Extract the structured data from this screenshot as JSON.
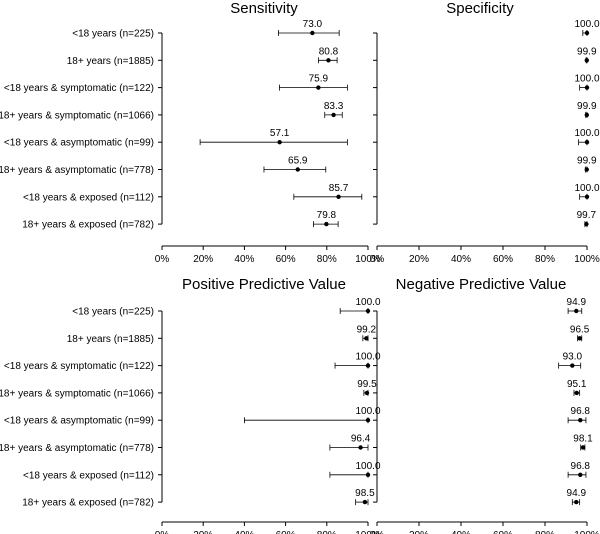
{
  "chart_data": [
    {
      "type": "forest",
      "title": "Sensitivity",
      "xlim": [
        0,
        100
      ],
      "x_unit": "%",
      "rows": [
        "<18 years (n=225)",
        "18+ years (n=1885)",
        "<18 years & symptomatic (n=122)",
        "18+ years & symptomatic (n=1066)",
        "<18 years & asymptomatic (n=99)",
        "18+ years & asymptomatic (n=778)",
        "<18 years & exposed (n=112)",
        "18+ years & exposed (n=782)"
      ],
      "estimates": [
        73.0,
        80.8,
        75.9,
        83.3,
        57.1,
        65.9,
        85.7,
        79.8
      ],
      "ci_low": [
        56.5,
        76.0,
        57.0,
        79.0,
        18.5,
        49.5,
        64.0,
        73.5
      ],
      "ci_high": [
        86.0,
        85.0,
        90.0,
        87.5,
        90.0,
        79.5,
        97.0,
        85.5
      ],
      "labels": [
        "73.0",
        "80.8",
        "75.9",
        "83.3",
        "57.1",
        "65.9",
        "85.7",
        "79.8"
      ]
    },
    {
      "type": "forest",
      "title": "Specificity",
      "xlim": [
        0,
        100
      ],
      "x_unit": "%",
      "rows": [
        "<18 years (n=225)",
        "18+ years (n=1885)",
        "<18 years & symptomatic (n=122)",
        "18+ years & symptomatic (n=1066)",
        "<18 years & asymptomatic (n=99)",
        "18+ years & asymptomatic (n=778)",
        "<18 years & exposed (n=112)",
        "18+ years & exposed (n=782)"
      ],
      "estimates": [
        100.0,
        99.9,
        100.0,
        99.9,
        100.0,
        99.9,
        100.0,
        99.7
      ],
      "ci_low": [
        98.0,
        99.6,
        96.5,
        99.4,
        96.0,
        99.2,
        96.5,
        99.0
      ],
      "ci_high": [
        100,
        100,
        100,
        100,
        100,
        100,
        100,
        100
      ],
      "labels": [
        "100.0",
        "99.9",
        "100.0",
        "99.9",
        "100.0",
        "99.9",
        "100.0",
        "99.7"
      ]
    },
    {
      "type": "forest",
      "title": "Positive Predictive Value",
      "xlim": [
        0,
        100
      ],
      "x_unit": "%",
      "rows": [
        "<18 years (n=225)",
        "18+ years (n=1885)",
        "<18 years & symptomatic (n=122)",
        "18+ years & symptomatic (n=1066)",
        "<18 years & asymptomatic (n=99)",
        "18+ years & asymptomatic (n=778)",
        "<18 years & exposed (n=112)",
        "18+ years & exposed (n=782)"
      ],
      "estimates": [
        100.0,
        99.2,
        100.0,
        99.5,
        100.0,
        96.4,
        100.0,
        98.5
      ],
      "ci_low": [
        86.5,
        97.5,
        84.0,
        98.0,
        40.0,
        81.5,
        81.5,
        94.0
      ],
      "ci_high": [
        100,
        100,
        100,
        100,
        100,
        100,
        100,
        100
      ],
      "labels": [
        "100.0",
        "99.2",
        "100.0",
        "99.5",
        "100.0",
        "96.4",
        "100.0",
        "98.5"
      ]
    },
    {
      "type": "forest",
      "title": "Negative Predictive Value",
      "xlim": [
        0,
        100
      ],
      "x_unit": "%",
      "rows": [
        "<18 years (n=225)",
        "18+ years (n=1885)",
        "<18 years & symptomatic (n=122)",
        "18+ years & symptomatic (n=1066)",
        "<18 years & asymptomatic (n=99)",
        "18+ years & asymptomatic (n=778)",
        "<18 years & exposed (n=112)",
        "18+ years & exposed (n=782)"
      ],
      "estimates": [
        94.9,
        96.5,
        93.0,
        95.1,
        96.8,
        98.1,
        96.8,
        94.9
      ],
      "ci_low": [
        91.0,
        95.5,
        86.5,
        93.8,
        91.0,
        97.0,
        91.0,
        93.0
      ],
      "ci_high": [
        97.5,
        97.5,
        97.0,
        96.5,
        99.5,
        99.0,
        99.5,
        96.5
      ],
      "labels": [
        "94.9",
        "96.5",
        "93.0",
        "95.1",
        "96.8",
        "98.1",
        "96.8",
        "94.9"
      ]
    }
  ],
  "x_ticks": [
    "0%",
    "20%",
    "40%",
    "60%",
    "80%",
    "100%"
  ]
}
